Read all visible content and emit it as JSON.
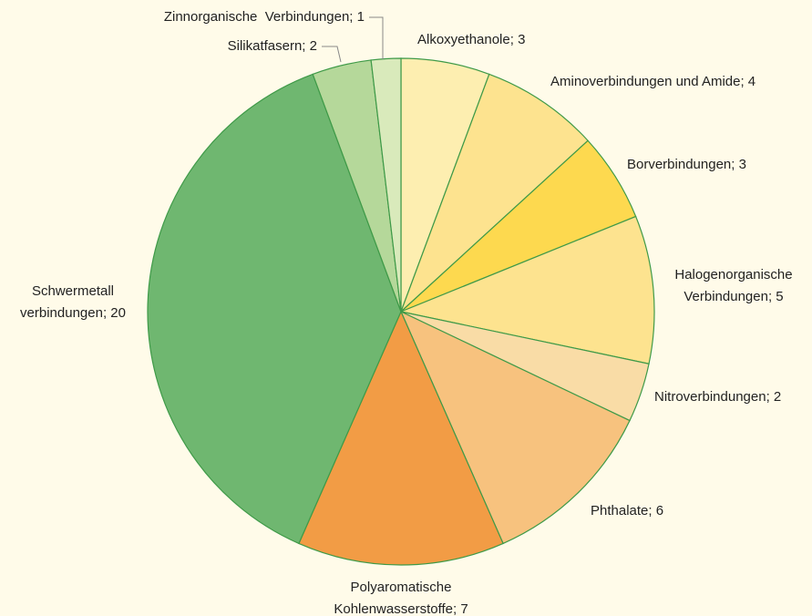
{
  "chart_data": {
    "type": "pie",
    "labels": [
      [
        "Alkoxyethanole; 3"
      ],
      [
        "Aminoverbindungen und Amide; 4"
      ],
      [
        "Borverbindungen; 3"
      ],
      [
        "Halogenorganische",
        "Verbindungen; 5"
      ],
      [
        "Nitroverbindungen; 2"
      ],
      [
        "Phthalate; 6"
      ],
      [
        "Polyaromatische",
        "Kohlenwasserstoffe; 7"
      ],
      [
        "Schwermetall",
        "verbindungen; 20"
      ],
      [
        "Silikatfasern; 2"
      ],
      [
        "Zinnorganische  Verbindungen; 1"
      ]
    ],
    "values": [
      3,
      4,
      3,
      5,
      2,
      6,
      7,
      20,
      2,
      1
    ],
    "colors": [
      "#fdeeb0",
      "#fde38f",
      "#fdd94f",
      "#fde38f",
      "#f9dca6",
      "#f7c27e",
      "#f29c45",
      "#6fb770",
      "#b5d89a",
      "#d9eabb"
    ]
  }
}
